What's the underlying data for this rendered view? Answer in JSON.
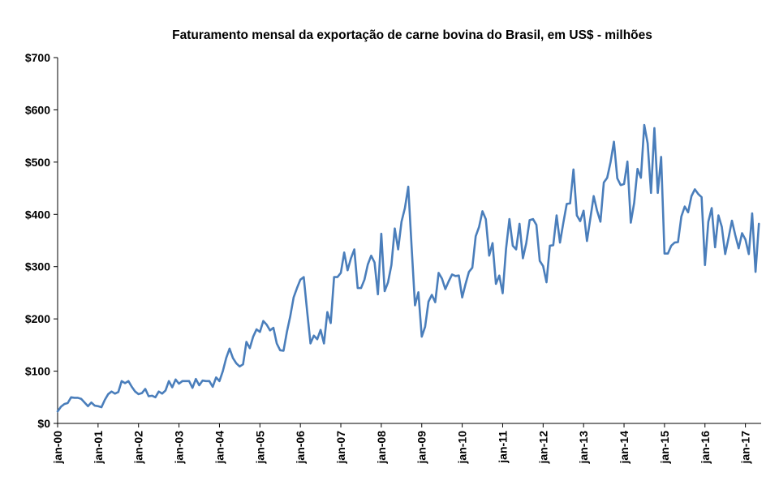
{
  "chart_data": {
    "type": "line",
    "title": "Faturamento mensal da exportação de carne bovina do  Brasil, em US$ - milhões",
    "xlabel": "",
    "ylabel": "",
    "ylim": [
      0,
      700
    ],
    "y_ticks": [
      0,
      100,
      200,
      300,
      400,
      500,
      600,
      700
    ],
    "y_tick_labels": [
      "$0",
      "$100",
      "$200",
      "$300",
      "$400",
      "$500",
      "$600",
      "$700"
    ],
    "x_tick_labels": [
      "jan-00",
      "jan-01",
      "jan-02",
      "jan-03",
      "jan-04",
      "jan-05",
      "jan-06",
      "jan-07",
      "jan-08",
      "jan-09",
      "jan-10",
      "jan-11",
      "jan-12",
      "jan-13",
      "jan-14",
      "jan-15",
      "jan-16",
      "jan-17"
    ],
    "x_start": "jan-00",
    "x_end": "mai-17",
    "frequency": "monthly",
    "grid": false,
    "legend": "none",
    "line_color": "#4a7ebb",
    "series": [
      {
        "name": "Faturamento (US$ milhões)",
        "values": [
          23,
          32,
          37,
          39,
          50,
          49,
          49,
          47,
          40,
          33,
          40,
          34,
          33,
          31,
          45,
          56,
          61,
          57,
          60,
          81,
          77,
          81,
          70,
          61,
          56,
          58,
          66,
          52,
          53,
          50,
          61,
          57,
          63,
          81,
          69,
          84,
          76,
          81,
          81,
          81,
          68,
          85,
          73,
          82,
          81,
          81,
          70,
          88,
          81,
          100,
          125,
          143,
          125,
          115,
          109,
          113,
          156,
          144,
          166,
          180,
          175,
          196,
          189,
          178,
          183,
          153,
          140,
          139,
          175,
          205,
          241,
          259,
          275,
          280,
          215,
          153,
          168,
          161,
          179,
          153,
          213,
          192,
          280,
          280,
          288,
          327,
          293,
          316,
          333,
          259,
          259,
          275,
          304,
          321,
          308,
          247,
          363,
          253,
          270,
          303,
          373,
          333,
          386,
          412,
          453,
          337,
          226,
          251,
          166,
          185,
          233,
          246,
          232,
          288,
          277,
          257,
          272,
          285,
          282,
          283,
          241,
          267,
          290,
          298,
          358,
          376,
          406,
          391,
          321,
          345,
          267,
          283,
          249,
          334,
          391,
          340,
          333,
          382,
          316,
          345,
          389,
          391,
          380,
          311,
          301,
          270,
          340,
          341,
          398,
          346,
          384,
          420,
          421,
          486,
          398,
          387,
          407,
          349,
          392,
          435,
          407,
          386,
          461,
          470,
          500,
          539,
          469,
          456,
          458,
          501,
          384,
          422,
          487,
          470,
          571,
          536,
          441,
          565,
          441,
          510,
          325,
          325,
          340,
          346,
          347,
          396,
          415,
          404,
          435,
          448,
          439,
          433,
          303,
          386,
          412,
          337,
          398,
          376,
          324,
          355,
          388,
          360,
          335,
          364,
          352,
          324,
          402,
          290,
          382
        ]
      }
    ]
  }
}
